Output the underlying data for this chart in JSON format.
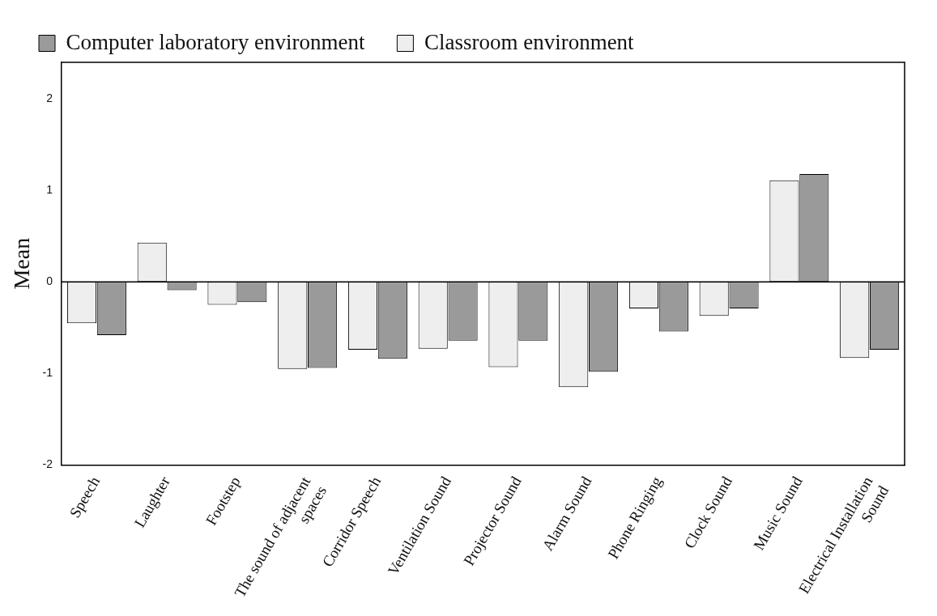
{
  "chart_data": {
    "type": "bar",
    "ylabel": "Mean",
    "categories": [
      "Speech",
      "Laughter",
      "Footstep",
      "The sound of adjacent spaces",
      "Corridor Speech",
      "Ventilation Sound",
      "Projector Sound",
      "Alarm Sound",
      "Phone Ringing",
      "Clock Sound",
      "Music Sound",
      "Electrical Installation Sound"
    ],
    "series": [
      {
        "name": "Classroom environment",
        "color": "#eeeeee",
        "values": [
          -0.45,
          0.43,
          -0.25,
          -0.95,
          -0.74,
          -0.73,
          -0.93,
          -1.15,
          -0.29,
          -0.37,
          1.11,
          -0.83
        ]
      },
      {
        "name": "Computer laboratory environment",
        "color": "#9a9a9a",
        "values": [
          -0.58,
          -0.09,
          -0.22,
          -0.94,
          -0.84,
          -0.64,
          -0.64,
          -0.98,
          -0.54,
          -0.29,
          1.18,
          -0.74
        ]
      }
    ],
    "ylim": [
      -2,
      2.4
    ],
    "yticks": [
      -2,
      -1,
      0,
      1,
      2
    ],
    "ref_lines": [
      {
        "axis": "y",
        "value": 0,
        "color": "#000000"
      }
    ],
    "grid": false,
    "legend": "top left"
  }
}
